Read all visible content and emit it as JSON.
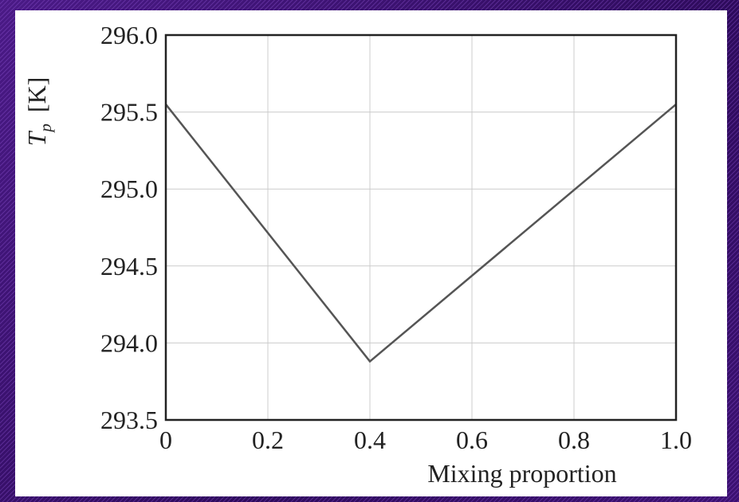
{
  "colors": {
    "background": "#3a1070",
    "panel": "#ffffff",
    "line": "#555555",
    "grid": "#cccccc",
    "axis": "#222222"
  },
  "chart_data": {
    "type": "line",
    "xlabel": "Mixing proportion",
    "ylabel_symbol": "T",
    "ylabel_subscript": "p",
    "ylabel_unit": "[K]",
    "xlim": [
      0,
      1.0
    ],
    "ylim": [
      293.5,
      296.0
    ],
    "x_ticks": [
      0,
      0.2,
      0.4,
      0.6,
      0.8,
      1.0
    ],
    "x_tick_labels": [
      "0",
      "0.2",
      "0.4",
      "0.6",
      "0.8",
      "1.0"
    ],
    "y_ticks": [
      293.5,
      294.0,
      294.5,
      295.0,
      295.5,
      296.0
    ],
    "y_tick_labels": [
      "293.5",
      "294.0",
      "294.5",
      "295.0",
      "295.5",
      "296.0"
    ],
    "grid": true,
    "series": [
      {
        "x": [
          0,
          0.4,
          1.0
        ],
        "y": [
          295.55,
          293.88,
          295.55
        ]
      }
    ]
  }
}
